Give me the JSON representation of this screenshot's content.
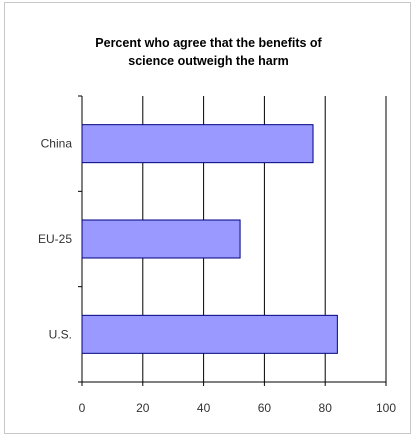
{
  "chart_data": {
    "type": "bar",
    "orientation": "horizontal",
    "title": "Percent who agree that the benefits of science outweigh the harm",
    "title_lines": [
      "Percent who agree that the benefits of",
      "science outweigh the harm"
    ],
    "categories": [
      "China",
      "EU-25",
      "U.S."
    ],
    "values": [
      76,
      52,
      84
    ],
    "xlabel": "",
    "ylabel": "",
    "xlim": [
      0,
      100
    ],
    "xticks": [
      "0",
      "20",
      "40",
      "60",
      "80",
      "100"
    ],
    "grid": true,
    "legend": "none",
    "bar_color": "#9999ff",
    "bar_edge_color": "#000080"
  }
}
